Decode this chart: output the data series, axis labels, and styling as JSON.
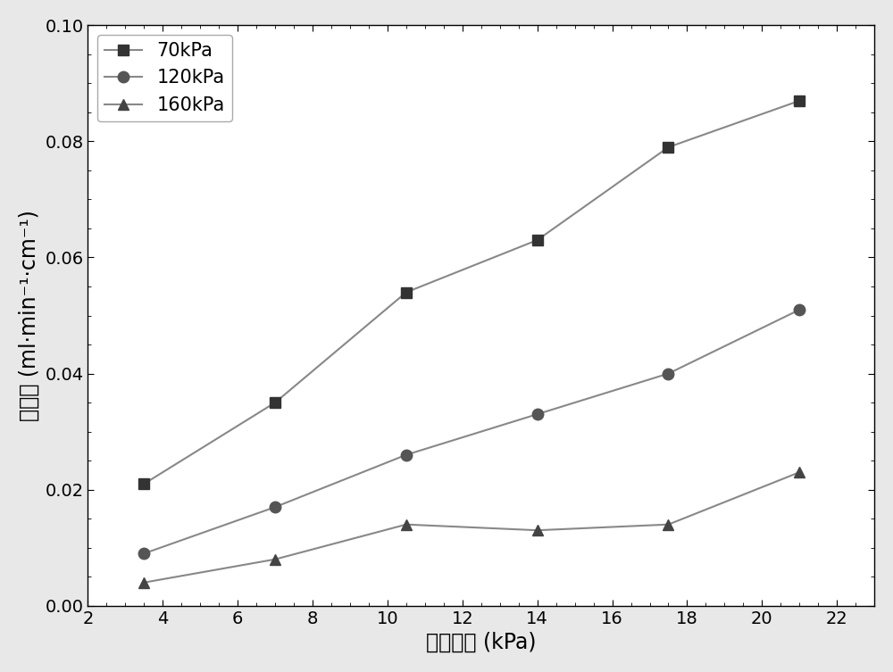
{
  "x_values": [
    3.5,
    7.0,
    10.5,
    14.0,
    17.5,
    21.0
  ],
  "series": [
    {
      "label": "70kPa",
      "y": [
        0.021,
        0.035,
        0.054,
        0.063,
        0.079,
        0.087
      ],
      "marker": "s",
      "color": "#333333"
    },
    {
      "label": "120kPa",
      "y": [
        0.009,
        0.017,
        0.026,
        0.033,
        0.04,
        0.051
      ],
      "marker": "o",
      "color": "#555555"
    },
    {
      "label": "160kPa",
      "y": [
        0.004,
        0.008,
        0.014,
        0.013,
        0.014,
        0.023
      ],
      "marker": "^",
      "color": "#444444"
    }
  ],
  "xlabel": "气体压强 (kPa)",
  "ylabel": "漏气率 (ml·min⁻¹·cm⁻¹)",
  "xlim": [
    2,
    23
  ],
  "ylim": [
    0.0,
    0.1
  ],
  "xticks": [
    2,
    4,
    6,
    8,
    10,
    12,
    14,
    16,
    18,
    20,
    22
  ],
  "yticks": [
    0.0,
    0.02,
    0.04,
    0.06,
    0.08,
    0.1
  ],
  "line_color": "#888888",
  "marker_size": 9,
  "line_width": 1.5,
  "legend_loc": "upper left",
  "font_size_label": 17,
  "font_size_tick": 14,
  "font_size_legend": 15,
  "bg_color": "#ffffff",
  "fig_bg_color": "#e8e8e8"
}
